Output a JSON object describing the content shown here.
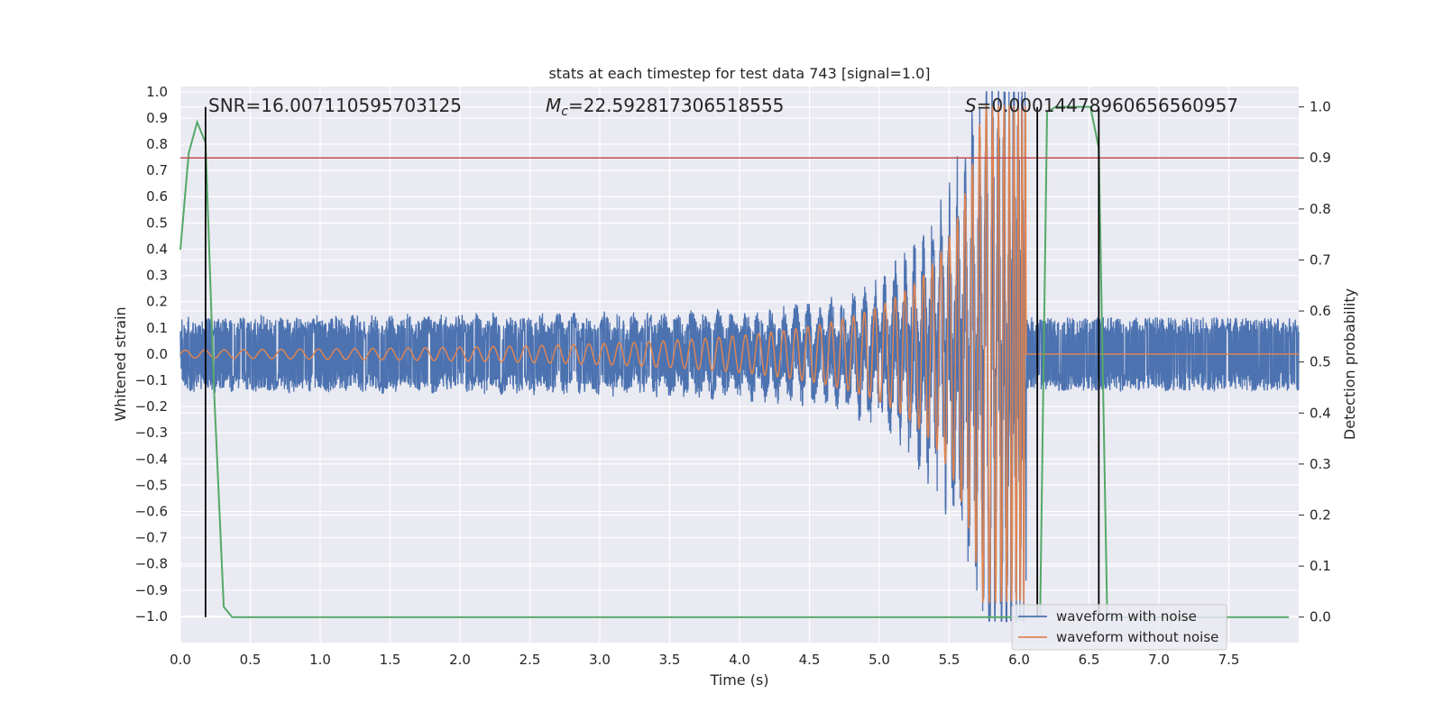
{
  "chart_data": {
    "type": "line",
    "title": "stats at each timestep for test data 743 [signal=1.0]",
    "xlabel": "Time (s)",
    "ylabel": "Whitened strain",
    "y2label": "Detection probability",
    "xlim": [
      0.0,
      8.0
    ],
    "ylim": [
      -1.1,
      1.02
    ],
    "y2lim": [
      -0.05,
      1.04
    ],
    "x_ticks": [
      "0.0",
      "0.5",
      "1.0",
      "1.5",
      "2.0",
      "2.5",
      "3.0",
      "3.5",
      "4.0",
      "4.5",
      "5.0",
      "5.5",
      "6.0",
      "6.5",
      "7.0",
      "7.5"
    ],
    "y_ticks": [
      "1.0",
      "0.9",
      "0.8",
      "0.7",
      "0.6",
      "0.5",
      "0.4",
      "0.3",
      "0.2",
      "0.1",
      "0.0",
      "−0.1",
      "−0.2",
      "−0.3",
      "−0.4",
      "−0.5",
      "−0.6",
      "−0.7",
      "−0.8",
      "−0.9",
      "−1.0"
    ],
    "y2_ticks": [
      "1.0",
      "0.9",
      "0.8",
      "0.7",
      "0.6",
      "0.5",
      "0.4",
      "0.3",
      "0.2",
      "0.1",
      "0.0"
    ],
    "grid": true,
    "legend_position": "lower-right",
    "annotations": {
      "snr": "SNR=16.007110595703125",
      "mc_symbol": "M",
      "mc_sub": "c",
      "mc_value": "=22.592817306518555",
      "s_symbol": "S",
      "s_value": "=0.00014478960656560957"
    },
    "noise_band": {
      "amplitude": 0.14,
      "peak_near_merger": 1.0
    },
    "signal_chirp": {
      "t_start": 0.0,
      "t_merger": 6.05,
      "amp_start": 0.015,
      "amp_merger": 0.95
    },
    "threshold": {
      "axis": "right",
      "value": 0.9
    },
    "vlines": [
      0.18,
      6.13,
      6.57
    ],
    "series": [
      {
        "name": "waveform with noise",
        "color": "#4c72b0",
        "axis": "left"
      },
      {
        "name": "waveform without noise",
        "color": "#dd8452",
        "axis": "left"
      },
      {
        "color": "#55a868",
        "axis": "right",
        "x": [
          0.0,
          0.06,
          0.12,
          0.18,
          0.24,
          0.31,
          0.37,
          6.15,
          6.2,
          6.26,
          6.51,
          6.57,
          6.63,
          7.93
        ],
        "y": [
          0.72,
          0.91,
          0.97,
          0.93,
          0.45,
          0.02,
          0.0,
          0.0,
          0.99,
          1.0,
          1.0,
          0.92,
          0.0,
          0.0
        ]
      }
    ],
    "colors": {
      "background": "#eaeaf2",
      "grid": "#ffffff",
      "threshold": "#c44e52",
      "vline": "#000000"
    }
  }
}
